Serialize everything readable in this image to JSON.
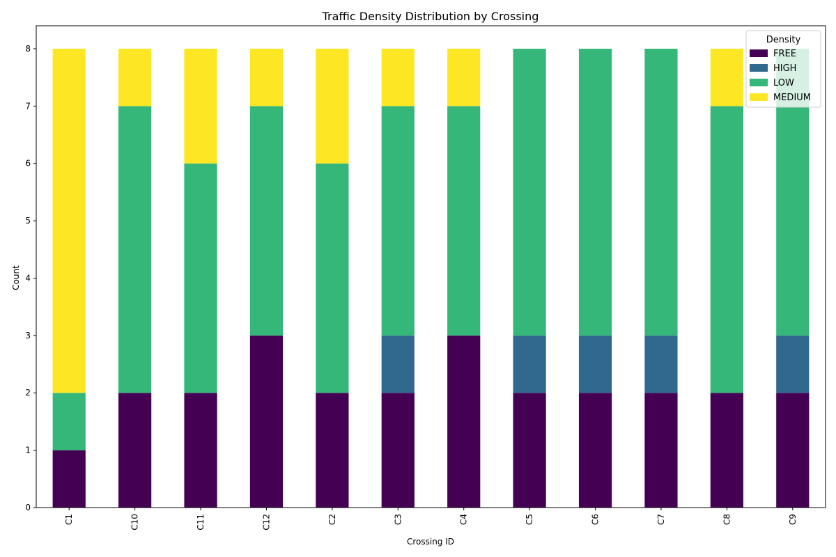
{
  "chart_data": {
    "type": "bar",
    "stacked": true,
    "title": "Traffic Density Distribution by Crossing",
    "xlabel": "Crossing ID",
    "ylabel": "Count",
    "ylim": [
      0,
      8.4
    ],
    "yticks": [
      0,
      1,
      2,
      3,
      4,
      5,
      6,
      7,
      8
    ],
    "grid": false,
    "legend": {
      "title": "Density",
      "placement": "top-right"
    },
    "categories": [
      "C1",
      "C10",
      "C11",
      "C12",
      "C2",
      "C3",
      "C4",
      "C5",
      "C6",
      "C7",
      "C8",
      "C9"
    ],
    "series": [
      {
        "name": "FREE",
        "color": "#440154",
        "values": [
          1,
          2,
          2,
          3,
          2,
          2,
          3,
          2,
          2,
          2,
          2,
          2
        ]
      },
      {
        "name": "HIGH",
        "color": "#31688e",
        "values": [
          0,
          0,
          0,
          0,
          0,
          1,
          0,
          1,
          1,
          1,
          0,
          1
        ]
      },
      {
        "name": "LOW",
        "color": "#35b779",
        "values": [
          1,
          5,
          4,
          4,
          4,
          4,
          4,
          5,
          5,
          5,
          5,
          5
        ]
      },
      {
        "name": "MEDIUM",
        "color": "#fde725",
        "values": [
          6,
          1,
          2,
          1,
          2,
          1,
          1,
          0,
          0,
          0,
          1,
          0
        ]
      }
    ]
  }
}
